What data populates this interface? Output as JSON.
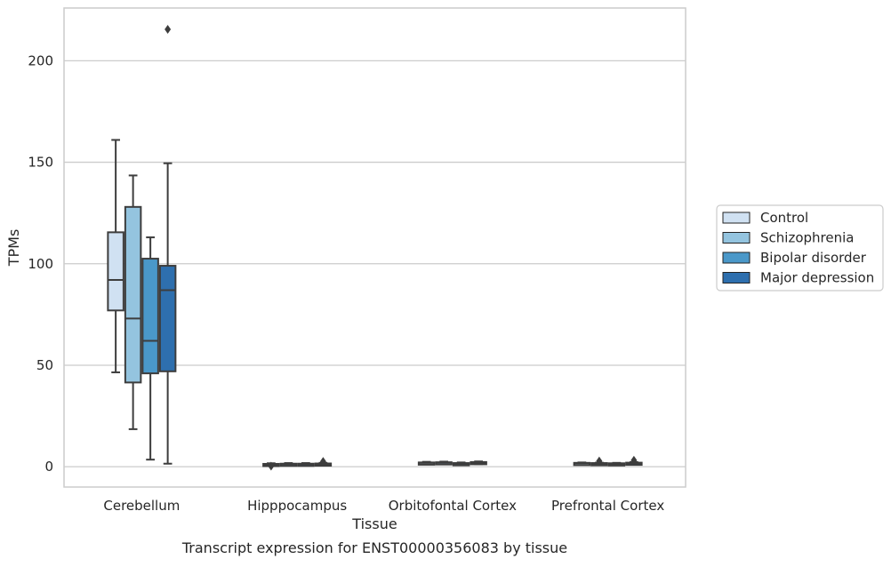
{
  "caption": "Transcript expression for ENST00000356083 by tissue",
  "chart_data": {
    "type": "box",
    "title": "",
    "xlabel": "Tissue",
    "ylabel": "TPMs",
    "ylim": [
      -10,
      226
    ],
    "yticks": [
      0,
      50,
      100,
      150,
      200
    ],
    "grid": "horizontal",
    "legend_position": "right",
    "categories": [
      "Cerebellum",
      "Hipppocampus",
      "Orbitofontal Cortex",
      "Prefrontal Cortex"
    ],
    "series": [
      {
        "name": "Control",
        "color": "#d0e1f2",
        "boxes": [
          {
            "whisker_low": 46.5,
            "q1": 77,
            "median": 92,
            "q3": 115.5,
            "whisker_high": 161,
            "outliers": []
          },
          {
            "whisker_low": 0.8,
            "q1": 0.9,
            "median": 1.1,
            "q3": 1.4,
            "whisker_high": 1.7,
            "outliers": [
              0.3
            ]
          },
          {
            "whisker_low": 1.4,
            "q1": 1.6,
            "median": 1.9,
            "q3": 2.1,
            "whisker_high": 2.4,
            "outliers": []
          },
          {
            "whisker_low": 1.2,
            "q1": 1.4,
            "median": 1.7,
            "q3": 1.9,
            "whisker_high": 2.1,
            "outliers": []
          }
        ]
      },
      {
        "name": "Schizophrenia",
        "color": "#94c4df",
        "boxes": [
          {
            "whisker_low": 18.5,
            "q1": 41.5,
            "median": 73,
            "q3": 128,
            "whisker_high": 143.5,
            "outliers": []
          },
          {
            "whisker_low": 0.9,
            "q1": 1.0,
            "median": 1.2,
            "q3": 1.5,
            "whisker_high": 1.8,
            "outliers": []
          },
          {
            "whisker_low": 1.5,
            "q1": 1.7,
            "median": 2.0,
            "q3": 2.2,
            "whisker_high": 2.5,
            "outliers": []
          },
          {
            "whisker_low": 1.0,
            "q1": 1.3,
            "median": 1.5,
            "q3": 1.8,
            "whisker_high": 2.0,
            "outliers": [
              2.8
            ]
          }
        ]
      },
      {
        "name": "Bipolar disorder",
        "color": "#4a98c9",
        "boxes": [
          {
            "whisker_low": 3.5,
            "q1": 46,
            "median": 62,
            "q3": 102.5,
            "whisker_high": 113,
            "outliers": []
          },
          {
            "whisker_low": 0.8,
            "q1": 1.0,
            "median": 1.2,
            "q3": 1.5,
            "whisker_high": 1.8,
            "outliers": []
          },
          {
            "whisker_low": 1.0,
            "q1": 1.3,
            "median": 1.5,
            "q3": 1.8,
            "whisker_high": 2.1,
            "outliers": []
          },
          {
            "whisker_low": 1.0,
            "q1": 1.2,
            "median": 1.4,
            "q3": 1.7,
            "whisker_high": 1.9,
            "outliers": []
          }
        ]
      },
      {
        "name": "Major depression",
        "color": "#2e6fae",
        "boxes": [
          {
            "whisker_low": 1.5,
            "q1": 47,
            "median": 87,
            "q3": 99,
            "whisker_high": 149.5,
            "outliers": [
              215.5
            ]
          },
          {
            "whisker_low": 0.9,
            "q1": 1.1,
            "median": 1.3,
            "q3": 1.6,
            "whisker_high": 1.9,
            "outliers": [
              2.6
            ]
          },
          {
            "whisker_low": 1.3,
            "q1": 1.6,
            "median": 1.9,
            "q3": 2.3,
            "whisker_high": 2.6,
            "outliers": []
          },
          {
            "whisker_low": 1.1,
            "q1": 1.4,
            "median": 1.7,
            "q3": 2.0,
            "whisker_high": 2.3,
            "outliers": [
              3.2
            ]
          }
        ]
      }
    ]
  }
}
